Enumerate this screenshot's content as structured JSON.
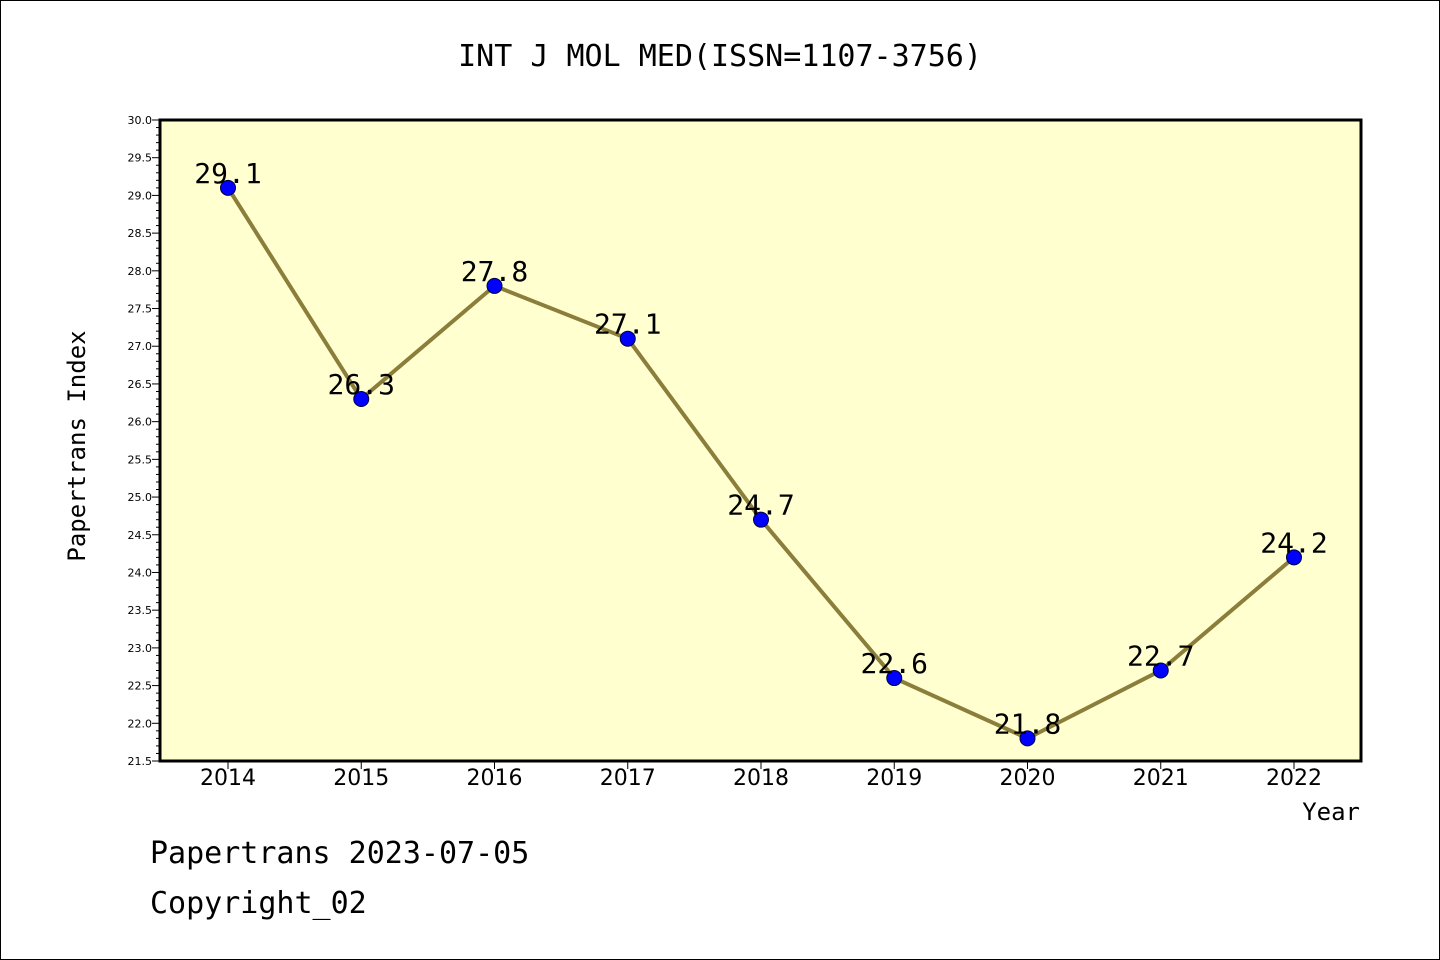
{
  "chart_data": {
    "type": "line",
    "title": "INT J MOL MED(ISSN=1107-3756)",
    "xlabel": "Year",
    "ylabel": "Papertrans Index",
    "categories": [
      "2014",
      "2015",
      "2016",
      "2017",
      "2018",
      "2019",
      "2020",
      "2021",
      "2022"
    ],
    "series": [
      {
        "values": [
          29.1,
          26.3,
          27.8,
          27.1,
          24.7,
          22.6,
          21.8,
          22.7,
          24.2
        ]
      }
    ],
    "data_labels": [
      "29.1",
      "26.3",
      "27.8",
      "27.1",
      "24.7",
      "22.6",
      "21.8",
      "22.7",
      "24.2"
    ],
    "ylim": [
      21.5,
      30.0
    ],
    "yticks": [
      21.5,
      22.0,
      22.5,
      23.0,
      23.5,
      24.0,
      24.5,
      25.0,
      25.5,
      26.0,
      26.5,
      27.0,
      27.5,
      28.0,
      28.5,
      29.0,
      29.5,
      30.0
    ],
    "ytick_labels": [
      "21.5",
      "22.0",
      "22.5",
      "23.0",
      "23.5",
      "24.0",
      "24.5",
      "25.0",
      "25.5",
      "26.0",
      "26.5",
      "27.0",
      "27.5",
      "28.0",
      "28.5",
      "29.0",
      "29.5",
      "30.0"
    ],
    "grid": false,
    "colors": {
      "plot_background": "#ffffd0",
      "line": "#8b7d3a",
      "marker": "#0000ff"
    }
  },
  "footer": {
    "date_line": "Papertrans 2023-07-05",
    "copyright_line": "Copyright_02"
  }
}
